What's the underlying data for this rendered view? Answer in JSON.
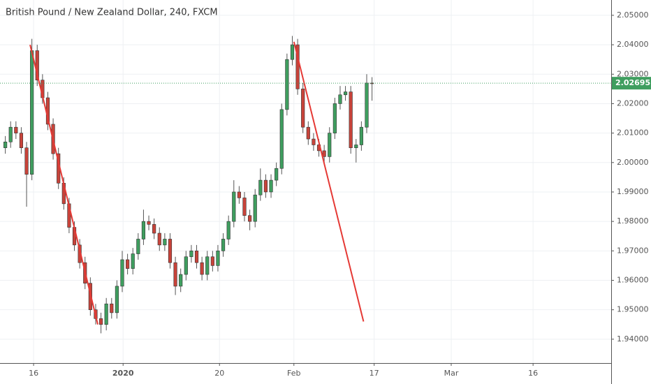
{
  "chart_data": {
    "type": "candlestick",
    "title": "British Pound / New Zealand Dollar, 240, FXCM",
    "x": [
      0,
      1,
      2,
      3,
      4,
      5,
      6,
      7,
      8,
      9,
      10,
      11,
      12,
      13,
      14,
      15,
      16,
      17,
      18,
      19,
      20,
      21,
      22,
      23,
      24,
      25,
      26,
      27,
      28,
      29,
      30,
      31,
      32,
      33,
      34,
      35,
      36,
      37,
      38,
      39,
      40,
      41,
      42,
      43,
      44,
      45,
      46,
      47,
      48,
      49,
      50,
      51,
      52,
      53,
      54,
      55,
      56,
      57,
      58,
      59,
      60,
      61,
      62,
      63,
      64,
      65,
      66,
      67,
      68,
      69
    ],
    "open": [
      2.005,
      2.007,
      2.012,
      2.01,
      2.005,
      1.996,
      2.038,
      2.028,
      2.022,
      2.013,
      2.003,
      1.993,
      1.986,
      1.978,
      1.972,
      1.966,
      1.959,
      1.95,
      1.947,
      1.945,
      1.952,
      1.949,
      1.958,
      1.967,
      1.964,
      1.969,
      1.974,
      1.98,
      1.979,
      1.976,
      1.972,
      1.974,
      1.966,
      1.958,
      1.962,
      1.968,
      1.97,
      1.966,
      1.962,
      1.968,
      1.965,
      1.97,
      1.974,
      1.98,
      1.99,
      1.988,
      1.982,
      1.98,
      1.989,
      1.994,
      1.99,
      1.994,
      1.998,
      2.018,
      2.035,
      2.04,
      2.025,
      2.012,
      2.008,
      2.006,
      2.004,
      2.002,
      2.01,
      2.02,
      2.023,
      2.024,
      2.005,
      2.006,
      2.012,
      2.027
    ],
    "high": [
      2.009,
      2.014,
      2.014,
      2.012,
      2.007,
      2.042,
      2.04,
      2.03,
      2.024,
      2.015,
      2.005,
      1.995,
      1.988,
      1.98,
      1.974,
      1.968,
      1.961,
      1.952,
      1.949,
      1.954,
      1.954,
      1.96,
      1.97,
      1.969,
      1.971,
      1.976,
      1.984,
      1.982,
      1.981,
      1.978,
      1.976,
      1.976,
      1.968,
      1.964,
      1.97,
      1.972,
      1.972,
      1.968,
      1.97,
      1.97,
      1.972,
      1.976,
      1.982,
      1.994,
      1.992,
      1.99,
      1.984,
      1.991,
      1.998,
      1.996,
      1.996,
      2.0,
      2.02,
      2.037,
      2.043,
      2.042,
      2.027,
      2.014,
      2.01,
      2.008,
      2.006,
      2.012,
      2.022,
      2.026,
      2.026,
      2.026,
      2.008,
      2.014,
      2.03,
      2.029
    ],
    "low": [
      2.003,
      2.005,
      2.008,
      2.003,
      1.985,
      1.994,
      2.026,
      2.02,
      2.011,
      2.001,
      1.991,
      1.984,
      1.976,
      1.97,
      1.964,
      1.957,
      1.948,
      1.945,
      1.942,
      1.943,
      1.947,
      1.947,
      1.956,
      1.962,
      1.962,
      1.967,
      1.972,
      1.977,
      1.974,
      1.97,
      1.97,
      1.964,
      1.955,
      1.956,
      1.96,
      1.966,
      1.964,
      1.96,
      1.96,
      1.963,
      1.963,
      1.968,
      1.972,
      1.978,
      1.986,
      1.98,
      1.977,
      1.978,
      1.987,
      1.988,
      1.988,
      1.992,
      1.996,
      2.016,
      2.033,
      2.023,
      2.01,
      2.006,
      2.004,
      2.002,
      2.0,
      2.0,
      2.008,
      2.018,
      2.021,
      2.003,
      2.0,
      2.004,
      2.01,
      2.021
    ],
    "close": [
      2.007,
      2.012,
      2.01,
      2.005,
      1.996,
      2.038,
      2.028,
      2.022,
      2.013,
      2.003,
      1.993,
      1.986,
      1.978,
      1.972,
      1.966,
      1.959,
      1.95,
      1.947,
      1.945,
      1.952,
      1.949,
      1.958,
      1.967,
      1.964,
      1.969,
      1.974,
      1.98,
      1.979,
      1.976,
      1.972,
      1.974,
      1.966,
      1.958,
      1.962,
      1.968,
      1.97,
      1.966,
      1.962,
      1.968,
      1.965,
      1.97,
      1.974,
      1.98,
      1.99,
      1.988,
      1.982,
      1.98,
      1.989,
      1.994,
      1.99,
      1.994,
      1.998,
      2.018,
      2.035,
      2.04,
      2.025,
      2.012,
      2.008,
      2.006,
      2.004,
      2.002,
      2.01,
      2.02,
      2.023,
      2.024,
      2.005,
      2.006,
      2.012,
      2.027,
      2.02695
    ],
    "up_color": "#3f9e5f",
    "down_color": "#c8433a",
    "wick_color": "#555555",
    "lines": [
      {
        "x": [
          4.66,
          17.4
        ],
        "y": [
          2.04,
          1.945
        ],
        "color": "#e53935"
      },
      {
        "x": [
          54.3,
          67.4
        ],
        "y": [
          2.041,
          1.946
        ],
        "color": "#e53935"
      }
    ],
    "last_price": 2.02695,
    "last_price_color": "#3f9e5f",
    "xlim": [
      -1,
      114
    ],
    "ylim": [
      1.9319,
      2.0552
    ],
    "xticks": [
      {
        "value": 5.32,
        "label": "16"
      },
      {
        "value": 22.16,
        "label": "2020"
      },
      {
        "value": 40.3,
        "label": "20"
      },
      {
        "value": 54.3,
        "label": "Feb"
      },
      {
        "value": 69.4,
        "label": "17"
      },
      {
        "value": 83.9,
        "label": "Mar"
      },
      {
        "value": 99.3,
        "label": "16"
      }
    ],
    "yticks": [
      {
        "value": 1.94,
        "label": "1.94000"
      },
      {
        "value": 1.95,
        "label": "1.95000"
      },
      {
        "value": 1.96,
        "label": "1.96000"
      },
      {
        "value": 1.97,
        "label": "1.97000"
      },
      {
        "value": 1.98,
        "label": "1.98000"
      },
      {
        "value": 1.99,
        "label": "1.99000"
      },
      {
        "value": 2.0,
        "label": "2.00000"
      },
      {
        "value": 2.01,
        "label": "2.01000"
      },
      {
        "value": 2.02,
        "label": "2.02000"
      },
      {
        "value": 2.03,
        "label": "2.03000"
      },
      {
        "value": 2.04,
        "label": "2.04000"
      },
      {
        "value": 2.05,
        "label": "2.05000"
      }
    ],
    "grid": true
  }
}
